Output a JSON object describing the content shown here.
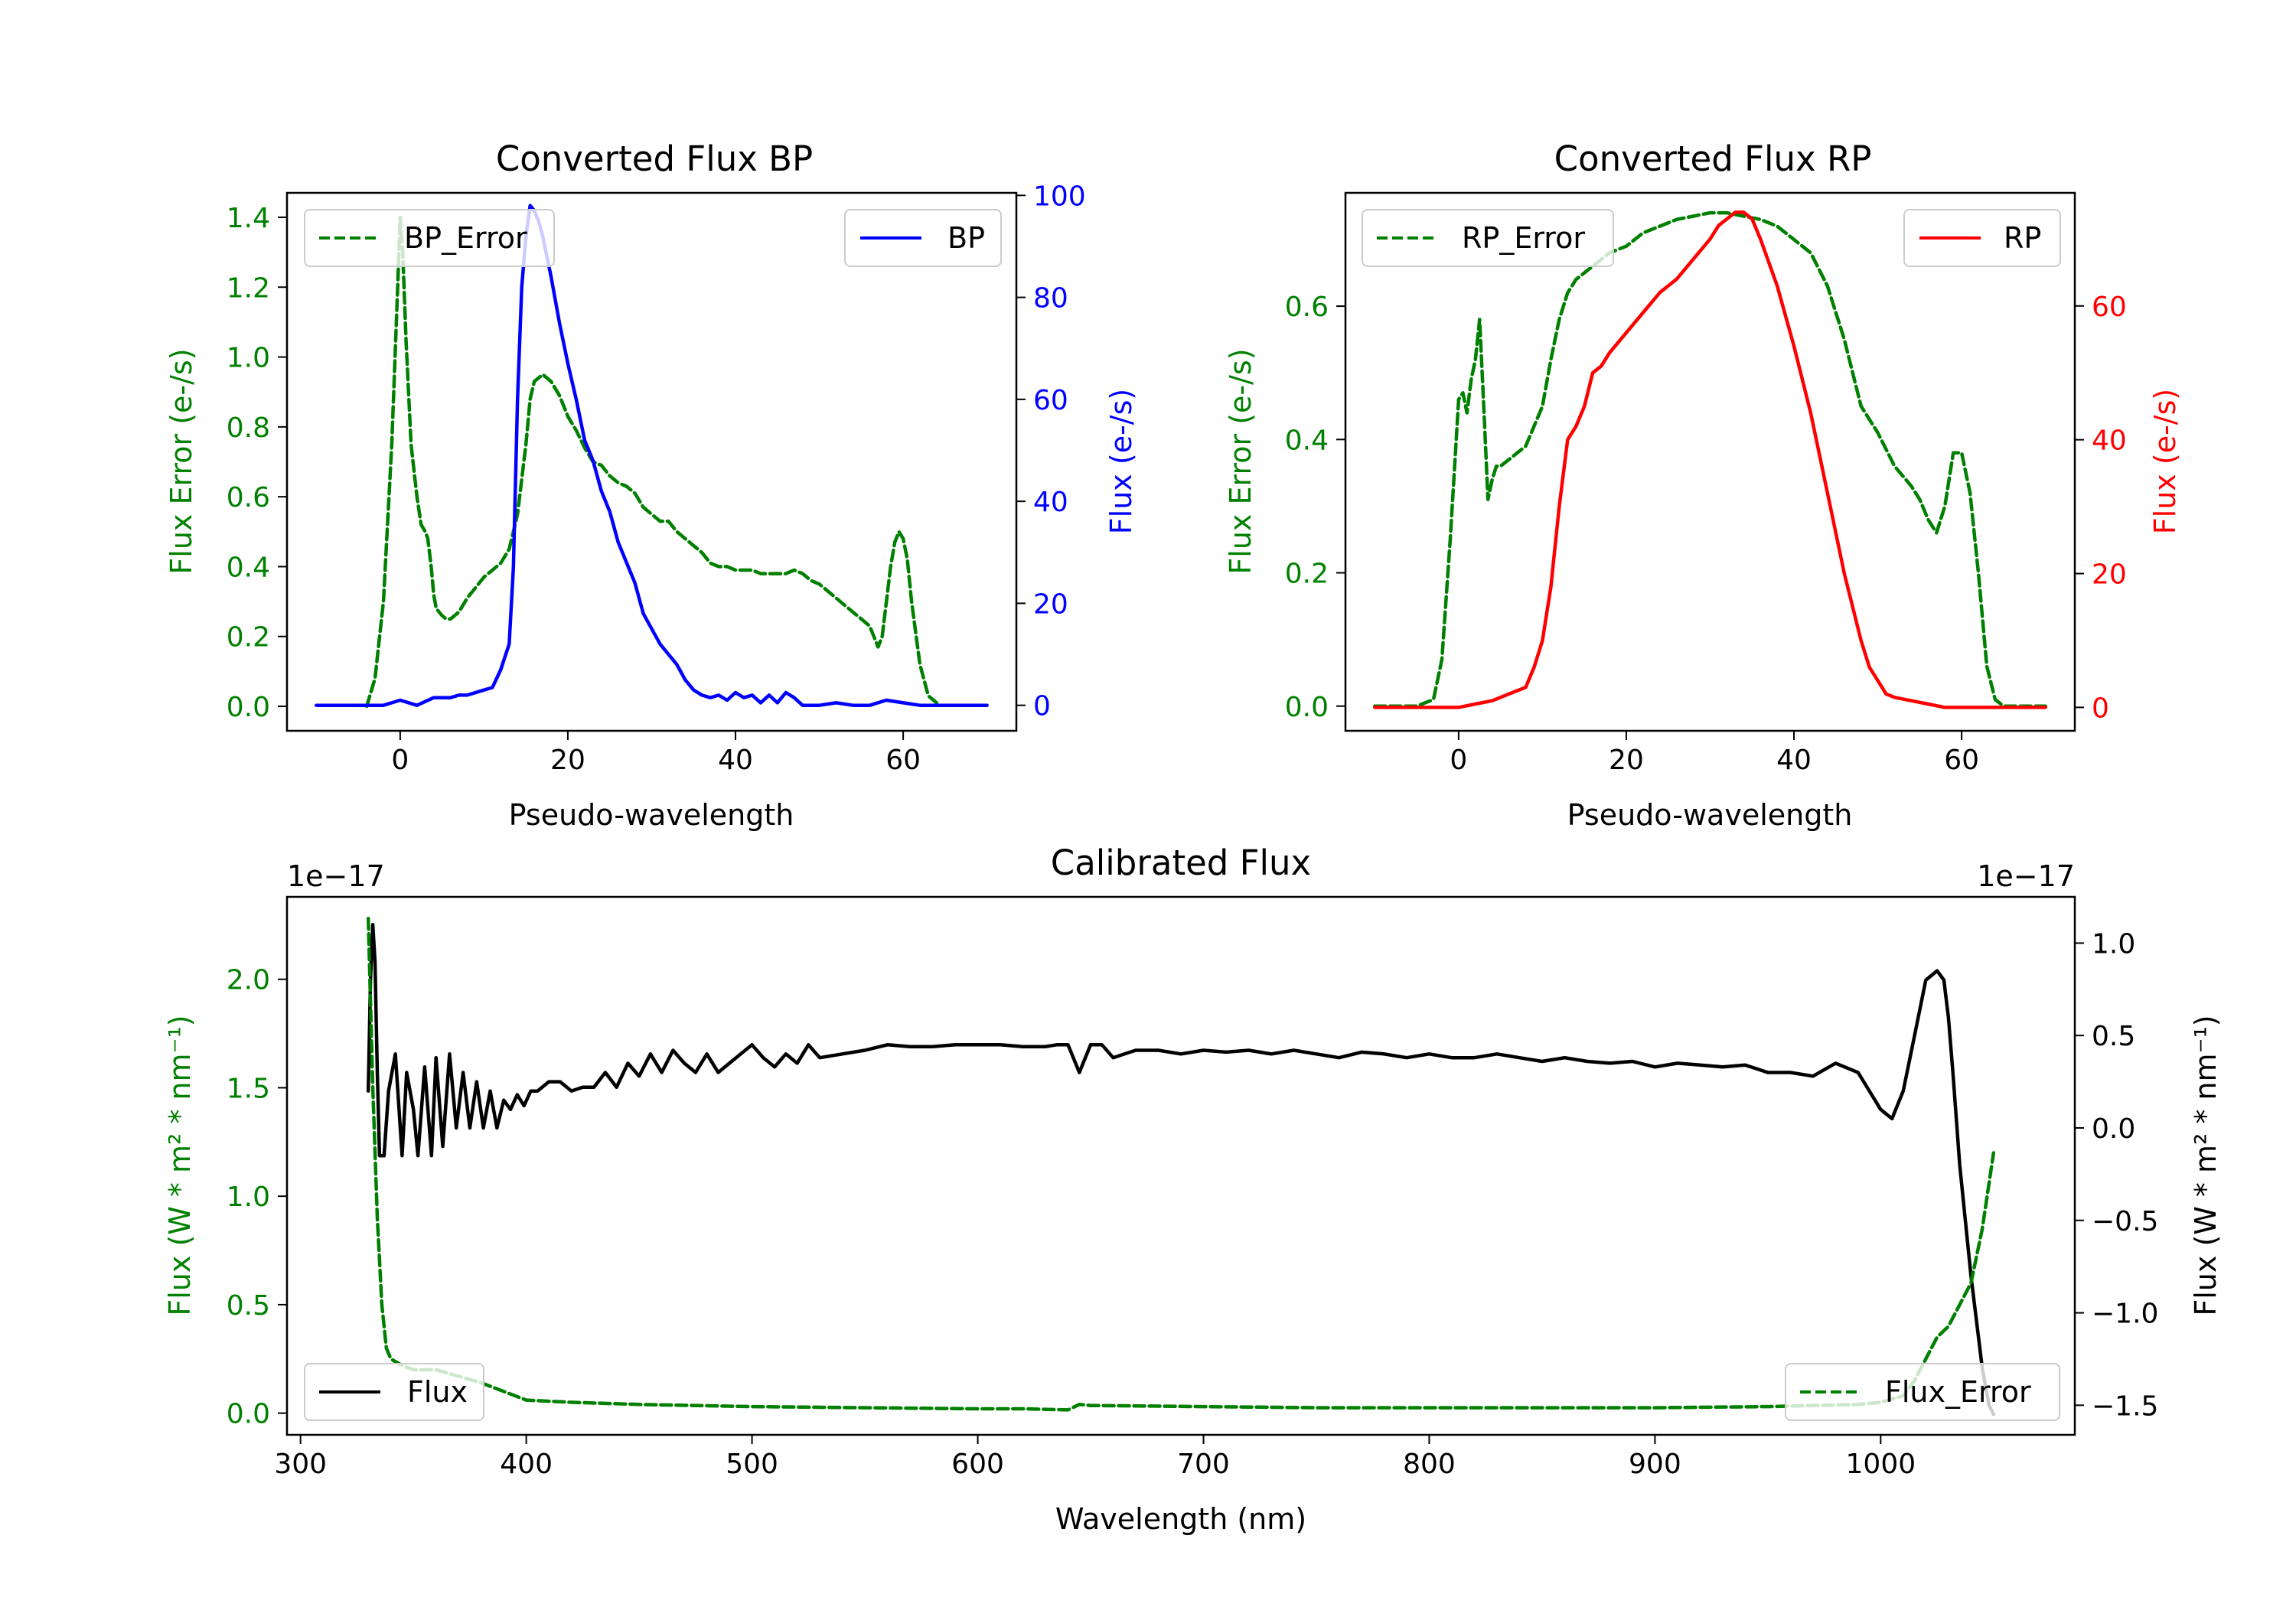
{
  "chart_data": [
    {
      "id": "bp",
      "type": "line",
      "title": "Converted Flux BP",
      "xlabel": "Pseudo-wavelength",
      "xlim": [
        -13.5,
        73.5
      ],
      "xticks": [
        0,
        20,
        40,
        60
      ],
      "left_axis": {
        "label": "Flux Error (e-/s)",
        "color": "#008000",
        "lim": [
          -0.07,
          1.47
        ],
        "ticks": [
          0.0,
          0.2,
          0.4,
          0.6,
          0.8,
          1.0,
          1.2,
          1.4
        ],
        "tick_labels": [
          "0.0",
          "0.2",
          "0.4",
          "0.6",
          "0.8",
          "1.0",
          "1.2",
          "1.4"
        ]
      },
      "right_axis": {
        "label": "Flux (e-/s)",
        "color": "#0000ff",
        "lim": [
          -5,
          100.5
        ],
        "ticks": [
          0,
          20,
          40,
          60,
          80,
          100
        ],
        "tick_labels": [
          "0",
          "20",
          "40",
          "60",
          "80",
          "100"
        ]
      },
      "series": [
        {
          "name": "BP_Error",
          "axis": "left",
          "color": "#008000",
          "dash": "dashed",
          "legend": "top-left",
          "x": [
            -4,
            -3,
            -2,
            -1,
            -0.3,
            0,
            0.3,
            0.7,
            1.3,
            2,
            2.5,
            3,
            3.3,
            3.7,
            4,
            4.3,
            5,
            5.5,
            6,
            7,
            8,
            9,
            10,
            11,
            12,
            13,
            14,
            15,
            15.5,
            16,
            17,
            18,
            19,
            20,
            21,
            22,
            23,
            24,
            25,
            26,
            27,
            28,
            29,
            30,
            31,
            32,
            33,
            34,
            35,
            36,
            37,
            38,
            39,
            40,
            41,
            42,
            43,
            44,
            45,
            46,
            47,
            48,
            49,
            50,
            51,
            52,
            53,
            54,
            55,
            56,
            56.5,
            57,
            57.5,
            58,
            58.5,
            59,
            59.5,
            60,
            60.5,
            61,
            62,
            63,
            64
          ],
          "y": [
            0.0,
            0.08,
            0.3,
            0.75,
            1.2,
            1.4,
            1.3,
            1.05,
            0.75,
            0.6,
            0.52,
            0.5,
            0.48,
            0.4,
            0.32,
            0.28,
            0.26,
            0.25,
            0.25,
            0.27,
            0.31,
            0.34,
            0.37,
            0.39,
            0.41,
            0.45,
            0.55,
            0.75,
            0.88,
            0.93,
            0.95,
            0.93,
            0.89,
            0.83,
            0.79,
            0.74,
            0.7,
            0.69,
            0.66,
            0.64,
            0.63,
            0.61,
            0.57,
            0.55,
            0.53,
            0.53,
            0.5,
            0.48,
            0.46,
            0.44,
            0.41,
            0.4,
            0.4,
            0.39,
            0.39,
            0.39,
            0.38,
            0.38,
            0.38,
            0.38,
            0.39,
            0.38,
            0.36,
            0.35,
            0.33,
            0.31,
            0.29,
            0.27,
            0.25,
            0.23,
            0.2,
            0.17,
            0.2,
            0.3,
            0.4,
            0.47,
            0.5,
            0.48,
            0.42,
            0.3,
            0.12,
            0.03,
            0.01
          ]
        },
        {
          "name": "BP",
          "axis": "right",
          "color": "#0000ff",
          "dash": "solid",
          "legend": "top-right",
          "x": [
            -10,
            -6,
            -2,
            0,
            2,
            4,
            6,
            7,
            8,
            10,
            11,
            12,
            13,
            13.5,
            14,
            14.5,
            15,
            15.5,
            16,
            16.5,
            17,
            18,
            19,
            20,
            21,
            22,
            23,
            24,
            25,
            26,
            27,
            28,
            29,
            30,
            31,
            32,
            33,
            34,
            35,
            36,
            37,
            38,
            39,
            40,
            41,
            42,
            43,
            44,
            45,
            46,
            47,
            48,
            49,
            50,
            52,
            54,
            56,
            58,
            60,
            62,
            64,
            66,
            70
          ],
          "y": [
            0,
            0,
            0,
            1,
            0,
            1.5,
            1.5,
            2,
            2,
            3,
            3.5,
            7,
            12,
            27,
            60,
            82,
            92,
            98,
            97,
            95,
            92,
            84,
            75,
            67,
            60,
            52,
            48,
            42,
            38,
            32,
            28,
            24,
            18,
            15,
            12,
            10,
            8,
            5,
            3,
            2,
            1.5,
            2,
            1,
            2.5,
            1.5,
            2,
            0.5,
            2,
            0.5,
            2.5,
            1.5,
            0,
            0,
            0,
            0.5,
            0,
            0,
            1,
            0.5,
            0,
            0,
            0,
            0
          ]
        }
      ]
    },
    {
      "id": "rp",
      "type": "line",
      "title": "Converted Flux RP",
      "xlabel": "Pseudo-wavelength",
      "xlim": [
        -13.5,
        73.5
      ],
      "xticks": [
        0,
        20,
        40,
        60
      ],
      "left_axis": {
        "label": "Flux Error (e-/s)",
        "color": "#008000",
        "lim": [
          -0.037,
          0.77
        ],
        "ticks": [
          0.0,
          0.2,
          0.4,
          0.6
        ],
        "tick_labels": [
          "0.0",
          "0.2",
          "0.4",
          "0.6"
        ]
      },
      "right_axis": {
        "label": "Flux (e-/s)",
        "color": "#ff0000",
        "lim": [
          -3.5,
          76.9
        ],
        "ticks": [
          0,
          20,
          40,
          60
        ],
        "tick_labels": [
          "0",
          "20",
          "40",
          "60"
        ]
      },
      "series": [
        {
          "name": "RP_Error",
          "axis": "left",
          "color": "#008000",
          "dash": "dashed",
          "legend": "top-left",
          "x": [
            -10,
            -5,
            -3,
            -2,
            -1,
            0,
            0.5,
            1,
            1.5,
            2,
            2.5,
            3,
            3.5,
            4,
            4.5,
            5,
            6,
            7,
            8,
            9,
            10,
            11,
            12,
            13,
            14,
            15,
            16,
            17,
            18,
            20,
            22,
            24,
            26,
            28,
            30,
            32,
            34,
            36,
            38,
            40,
            42,
            44,
            46,
            48,
            50,
            52,
            54,
            55,
            56,
            57,
            58,
            59,
            60,
            61,
            62,
            63,
            64,
            65,
            70
          ],
          "y": [
            0.0,
            0.0,
            0.01,
            0.07,
            0.25,
            0.46,
            0.47,
            0.44,
            0.49,
            0.52,
            0.58,
            0.45,
            0.31,
            0.34,
            0.36,
            0.36,
            0.37,
            0.38,
            0.39,
            0.42,
            0.45,
            0.52,
            0.58,
            0.62,
            0.64,
            0.65,
            0.66,
            0.67,
            0.68,
            0.69,
            0.71,
            0.72,
            0.73,
            0.735,
            0.74,
            0.74,
            0.735,
            0.73,
            0.72,
            0.7,
            0.68,
            0.63,
            0.55,
            0.45,
            0.41,
            0.36,
            0.33,
            0.31,
            0.28,
            0.26,
            0.3,
            0.38,
            0.38,
            0.32,
            0.2,
            0.06,
            0.01,
            0.0,
            0.0
          ]
        },
        {
          "name": "RP",
          "axis": "right",
          "color": "#ff0000",
          "dash": "solid",
          "legend": "top-right",
          "x": [
            -10,
            -6,
            0,
            2,
            4,
            6,
            8,
            9,
            10,
            11,
            12,
            13,
            14,
            15,
            16,
            17,
            18,
            20,
            22,
            24,
            26,
            28,
            30,
            31,
            32,
            33,
            34,
            35,
            36,
            38,
            40,
            42,
            44,
            46,
            48,
            49,
            50,
            51,
            52,
            54,
            56,
            58,
            60,
            65,
            70
          ],
          "y": [
            0,
            0,
            0,
            0.5,
            1,
            2,
            3,
            6,
            10,
            18,
            30,
            40,
            42,
            45,
            50,
            51,
            53,
            56,
            59,
            62,
            64,
            67,
            70,
            72,
            73,
            74,
            74,
            73,
            70,
            63,
            54,
            44,
            32,
            20,
            10,
            6,
            4,
            2,
            1.5,
            1,
            0.5,
            0,
            0,
            0,
            0
          ]
        }
      ]
    },
    {
      "id": "calibrated",
      "type": "line",
      "title": "Calibrated Flux",
      "xlabel": "Wavelength (nm)",
      "xlim": [
        294,
        1086
      ],
      "xticks": [
        300,
        400,
        500,
        600,
        700,
        800,
        900,
        1000
      ],
      "left_axis": {
        "label": "Flux (W * m² * nm⁻¹)",
        "color": "#008000",
        "lim": [
          -0.1,
          2.38
        ],
        "ticks": [
          0.0,
          0.5,
          1.0,
          1.5,
          2.0
        ],
        "tick_labels": [
          "0.0",
          "0.5",
          "1.0",
          "1.5",
          "2.0"
        ],
        "offset_text": "1e−17"
      },
      "right_axis": {
        "label": "Flux (W * m² * nm⁻¹)",
        "color": "#000000",
        "lim": [
          -1.66,
          1.25
        ],
        "ticks": [
          1.0,
          0.5,
          0.0,
          -0.5,
          -1.0,
          -1.5
        ],
        "tick_labels": [
          "1.0",
          "0.5",
          "0.0",
          "−0.5",
          "−1.0",
          "−1.5"
        ],
        "offset_text": "1e−17"
      },
      "series": [
        {
          "name": "Flux",
          "axis": "right",
          "color": "#000000",
          "dash": "solid",
          "legend": "bottom-left",
          "x": [
            330,
            331,
            332,
            333,
            334,
            335,
            337,
            339,
            342,
            345,
            347,
            350,
            352,
            355,
            358,
            360,
            363,
            366,
            369,
            372,
            375,
            378,
            381,
            384,
            387,
            390,
            393,
            396,
            399,
            402,
            405,
            410,
            415,
            420,
            425,
            430,
            435,
            440,
            445,
            450,
            455,
            460,
            465,
            470,
            475,
            480,
            485,
            490,
            495,
            500,
            505,
            510,
            515,
            520,
            525,
            530,
            540,
            550,
            560,
            570,
            580,
            590,
            600,
            610,
            620,
            630,
            635,
            640,
            645,
            650,
            655,
            660,
            665,
            670,
            680,
            690,
            700,
            710,
            720,
            730,
            740,
            750,
            760,
            770,
            780,
            790,
            800,
            810,
            820,
            830,
            840,
            850,
            860,
            870,
            880,
            890,
            900,
            910,
            920,
            930,
            940,
            950,
            960,
            970,
            980,
            990,
            1000,
            1005,
            1010,
            1015,
            1020,
            1025,
            1028,
            1030,
            1032,
            1035,
            1040,
            1045,
            1048,
            1050
          ],
          "y": [
            0.2,
            0.8,
            1.1,
            0.9,
            0.3,
            -0.15,
            -0.15,
            0.2,
            0.4,
            -0.15,
            0.3,
            0.1,
            -0.15,
            0.33,
            -0.15,
            0.38,
            -0.1,
            0.4,
            0.0,
            0.3,
            0.0,
            0.25,
            0.0,
            0.2,
            0.0,
            0.15,
            0.1,
            0.18,
            0.12,
            0.2,
            0.2,
            0.25,
            0.25,
            0.2,
            0.22,
            0.22,
            0.3,
            0.22,
            0.35,
            0.28,
            0.4,
            0.3,
            0.42,
            0.35,
            0.3,
            0.4,
            0.3,
            0.35,
            0.4,
            0.45,
            0.38,
            0.33,
            0.4,
            0.35,
            0.45,
            0.38,
            0.4,
            0.42,
            0.45,
            0.44,
            0.44,
            0.45,
            0.45,
            0.45,
            0.44,
            0.44,
            0.45,
            0.45,
            0.3,
            0.45,
            0.45,
            0.38,
            0.4,
            0.42,
            0.42,
            0.4,
            0.42,
            0.41,
            0.42,
            0.4,
            0.42,
            0.4,
            0.38,
            0.41,
            0.4,
            0.38,
            0.4,
            0.38,
            0.38,
            0.4,
            0.38,
            0.36,
            0.38,
            0.36,
            0.35,
            0.36,
            0.33,
            0.35,
            0.34,
            0.33,
            0.34,
            0.3,
            0.3,
            0.28,
            0.35,
            0.3,
            0.1,
            0.05,
            0.2,
            0.5,
            0.8,
            0.85,
            0.8,
            0.6,
            0.3,
            -0.2,
            -0.8,
            -1.3,
            -1.5,
            -1.55
          ],
          "draw_order": 0
        },
        {
          "name": "Flux_Error",
          "axis": "left",
          "color": "#008000",
          "dash": "dashed",
          "legend": "bottom-right",
          "x": [
            330,
            332,
            334,
            336,
            338,
            340,
            345,
            350,
            360,
            370,
            380,
            390,
            400,
            420,
            450,
            500,
            550,
            600,
            620,
            640,
            645,
            650,
            700,
            750,
            800,
            850,
            900,
            950,
            970,
            990,
            1000,
            1010,
            1015,
            1020,
            1025,
            1030,
            1035,
            1040,
            1045,
            1050
          ],
          "y": [
            2.28,
            1.5,
            0.9,
            0.5,
            0.3,
            0.25,
            0.22,
            0.2,
            0.2,
            0.17,
            0.14,
            0.1,
            0.06,
            0.05,
            0.04,
            0.03,
            0.025,
            0.02,
            0.02,
            0.015,
            0.04,
            0.035,
            0.03,
            0.025,
            0.025,
            0.025,
            0.025,
            0.03,
            0.035,
            0.04,
            0.05,
            0.08,
            0.15,
            0.25,
            0.35,
            0.4,
            0.5,
            0.6,
            0.85,
            1.2
          ],
          "draw_order": 1
        }
      ]
    }
  ]
}
